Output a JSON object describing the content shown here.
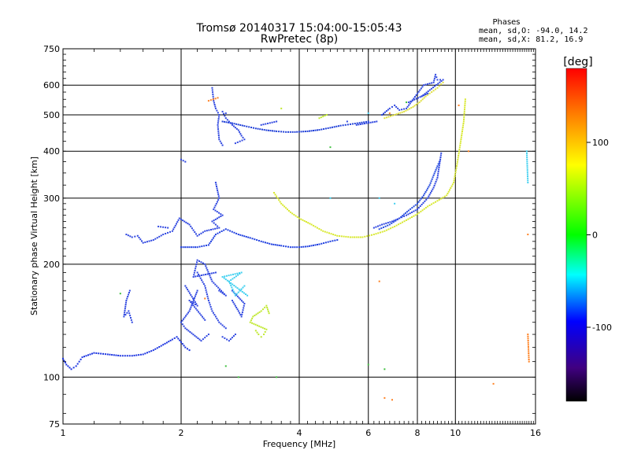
{
  "chart_data": {
    "type": "scatter",
    "title": "Tromsø 20140317 15:04:00-15:05:43",
    "subtitle": "RwPretec (8p)",
    "xlabel": "Frequency [MHz]",
    "ylabel": "Stationary phase Virtual Height [km]",
    "x_scale": "log",
    "y_scale": "log",
    "xlim": [
      1,
      16
    ],
    "ylim": [
      75,
      750
    ],
    "x_ticks": [
      1,
      2,
      4,
      6,
      8,
      10,
      16
    ],
    "x_tick_labels": [
      "1",
      "2",
      "4",
      "6",
      "8",
      "10",
      "16"
    ],
    "y_ticks": [
      75,
      100,
      200,
      300,
      400,
      500,
      600,
      750
    ],
    "y_tick_labels": [
      "75",
      "100",
      "200",
      "300",
      "400",
      "500",
      "600",
      "750"
    ],
    "grid": true,
    "stats": {
      "heading": "Phases",
      "line_o": "mean, sd,O: -94.0, 14.2",
      "line_x": "mean, sd,X:  81.2, 16.9"
    },
    "colorbar": {
      "label": "[deg]",
      "range": [
        -180,
        180
      ],
      "ticks": [
        100,
        0,
        -100
      ],
      "tick_labels": [
        "100",
        "0",
        "-100"
      ],
      "colors": [
        "#ff0000",
        "#ff8000",
        "#ffff00",
        "#00ff00",
        "#00ffff",
        "#0000ff",
        "#400080",
        "#000000"
      ]
    },
    "series": [
      {
        "color": "#1a33e0",
        "phase": -100,
        "points": [
          [
            1.0,
            112
          ],
          [
            1.02,
            108
          ],
          [
            1.05,
            105
          ],
          [
            1.08,
            107
          ],
          [
            1.1,
            110
          ],
          [
            1.12,
            113
          ],
          [
            1.2,
            116
          ],
          [
            1.3,
            115
          ],
          [
            1.4,
            114
          ],
          [
            1.5,
            114
          ],
          [
            1.6,
            115
          ],
          [
            1.7,
            118
          ],
          [
            1.8,
            122
          ],
          [
            1.9,
            126
          ],
          [
            1.95,
            128
          ],
          [
            2.0,
            124
          ],
          [
            2.05,
            120
          ],
          [
            2.1,
            118
          ]
        ]
      },
      {
        "color": "#2040e0",
        "phase": -95,
        "points": [
          [
            2.0,
            222
          ],
          [
            2.2,
            222
          ],
          [
            2.35,
            225
          ],
          [
            2.45,
            240
          ],
          [
            2.6,
            248
          ],
          [
            2.8,
            240
          ],
          [
            3.0,
            235
          ],
          [
            3.2,
            230
          ],
          [
            3.4,
            226
          ],
          [
            3.6,
            224
          ],
          [
            3.8,
            222
          ],
          [
            4.0,
            222
          ],
          [
            4.2,
            223
          ],
          [
            4.5,
            226
          ],
          [
            4.8,
            230
          ],
          [
            5.0,
            232
          ]
        ]
      },
      {
        "color": "#2040d8",
        "phase": -95,
        "points": [
          [
            2.55,
            480
          ],
          [
            2.7,
            475
          ],
          [
            2.9,
            467
          ],
          [
            3.1,
            460
          ],
          [
            3.3,
            455
          ],
          [
            3.5,
            452
          ],
          [
            3.7,
            450
          ],
          [
            3.9,
            450
          ],
          [
            4.2,
            452
          ],
          [
            4.5,
            456
          ],
          [
            4.8,
            462
          ],
          [
            5.1,
            468
          ],
          [
            5.4,
            472
          ],
          [
            5.7,
            476
          ],
          [
            6.0,
            480
          ]
        ]
      },
      {
        "color": "#2a50e0",
        "phase": -90,
        "points": [
          [
            6.4,
            248
          ],
          [
            6.8,
            255
          ],
          [
            7.2,
            265
          ],
          [
            7.6,
            278
          ],
          [
            8.0,
            290
          ],
          [
            8.3,
            305
          ],
          [
            8.6,
            325
          ],
          [
            8.8,
            345
          ],
          [
            9.0,
            365
          ],
          [
            9.15,
            380
          ]
        ]
      },
      {
        "color": "#d8e830",
        "phase": 80,
        "points": [
          [
            3.45,
            310
          ],
          [
            3.6,
            290
          ],
          [
            3.8,
            275
          ],
          [
            4.0,
            265
          ],
          [
            4.3,
            255
          ],
          [
            4.6,
            245
          ],
          [
            5.0,
            238
          ],
          [
            5.4,
            236
          ],
          [
            5.8,
            236
          ],
          [
            6.2,
            240
          ],
          [
            6.6,
            245
          ],
          [
            7.0,
            252
          ],
          [
            7.5,
            262
          ],
          [
            8.0,
            272
          ],
          [
            8.5,
            285
          ],
          [
            9.0,
            295
          ],
          [
            9.5,
            305
          ],
          [
            9.9,
            330
          ],
          [
            10.1,
            370
          ],
          [
            10.3,
            420
          ],
          [
            10.5,
            480
          ],
          [
            10.6,
            550
          ]
        ]
      },
      {
        "color": "#e0e040",
        "phase": 75,
        "points": [
          [
            6.6,
            490
          ],
          [
            7.0,
            500
          ],
          [
            7.4,
            510
          ],
          [
            7.8,
            525
          ],
          [
            8.1,
            540
          ],
          [
            8.4,
            560
          ],
          [
            8.7,
            575
          ],
          [
            9.0,
            590
          ],
          [
            9.3,
            610
          ]
        ]
      },
      {
        "color": "#3048e0",
        "phase": -90,
        "points": [
          [
            2.4,
            590
          ],
          [
            2.42,
            545
          ],
          [
            2.45,
            520
          ],
          [
            2.5,
            500
          ],
          [
            2.48,
            470
          ],
          [
            2.5,
            430
          ],
          [
            2.55,
            415
          ],
          [
            2.45,
            330
          ],
          [
            2.5,
            300
          ],
          [
            2.42,
            280
          ],
          [
            2.55,
            270
          ],
          [
            2.4,
            260
          ],
          [
            2.5,
            250
          ],
          [
            2.3,
            245
          ],
          [
            2.2,
            238
          ],
          [
            2.1,
            255
          ],
          [
            1.98,
            265
          ],
          [
            1.9,
            245
          ],
          [
            1.8,
            240
          ],
          [
            1.7,
            232
          ],
          [
            1.6,
            228
          ],
          [
            1.55,
            238
          ],
          [
            1.5,
            236
          ],
          [
            1.45,
            240
          ],
          [
            1.75,
            252
          ],
          [
            1.85,
            250
          ],
          [
            2.2,
            190
          ],
          [
            2.3,
            175
          ],
          [
            2.35,
            160
          ],
          [
            2.4,
            150
          ],
          [
            2.45,
            145
          ],
          [
            2.5,
            140
          ],
          [
            2.6,
            135
          ],
          [
            2.2,
            170
          ],
          [
            2.1,
            150
          ],
          [
            2.0,
            140
          ],
          [
            2.05,
            135
          ],
          [
            2.25,
            125
          ],
          [
            2.35,
            130
          ],
          [
            2.5,
            170
          ],
          [
            2.6,
            165
          ],
          [
            2.4,
            180
          ],
          [
            2.3,
            200
          ],
          [
            2.2,
            205
          ],
          [
            2.15,
            185
          ],
          [
            2.45,
            190
          ],
          [
            2.55,
            128
          ],
          [
            2.65,
            125
          ],
          [
            2.75,
            130
          ],
          [
            2.3,
            142
          ],
          [
            2.1,
            160
          ],
          [
            2.2,
            155
          ],
          [
            2.05,
            175
          ],
          [
            1.5,
            140
          ],
          [
            1.47,
            150
          ],
          [
            1.43,
            145
          ],
          [
            1.45,
            160
          ],
          [
            1.48,
            170
          ],
          [
            2.7,
            160
          ],
          [
            2.8,
            150
          ],
          [
            2.85,
            145
          ],
          [
            2.9,
            157
          ],
          [
            2.7,
            170
          ],
          [
            2.0,
            380
          ],
          [
            2.05,
            375
          ],
          [
            2.55,
            510
          ],
          [
            2.6,
            490
          ],
          [
            2.65,
            480
          ],
          [
            2.7,
            470
          ],
          [
            2.8,
            455
          ],
          [
            2.85,
            440
          ],
          [
            2.9,
            430
          ],
          [
            2.75,
            420
          ],
          [
            2.6,
            505
          ],
          [
            5.3,
            480
          ],
          [
            6.5,
            500
          ],
          [
            6.8,
            520
          ],
          [
            7.0,
            530
          ],
          [
            7.2,
            515
          ],
          [
            7.5,
            520
          ],
          [
            8.3,
            600
          ],
          [
            8.8,
            610
          ],
          [
            8.9,
            640
          ],
          [
            9.0,
            620
          ],
          [
            9.3,
            620
          ],
          [
            8.2,
            560
          ],
          [
            8.5,
            570
          ],
          [
            7.6,
            540
          ],
          [
            6.3,
            480
          ],
          [
            5.6,
            470
          ],
          [
            3.2,
            470
          ],
          [
            3.5,
            480
          ],
          [
            9.2,
            395
          ],
          [
            9.0,
            340
          ],
          [
            8.8,
            320
          ],
          [
            8.5,
            300
          ],
          [
            8.0,
            280
          ],
          [
            7.5,
            270
          ],
          [
            7.2,
            265
          ],
          [
            6.9,
            260
          ],
          [
            6.5,
            255
          ],
          [
            6.2,
            250
          ]
        ]
      },
      {
        "color": "#40d0f0",
        "phase": -20,
        "points": [
          [
            2.9,
            175
          ],
          [
            2.75,
            165
          ],
          [
            2.65,
            180
          ],
          [
            2.85,
            190
          ],
          [
            2.55,
            185
          ],
          [
            2.95,
            165
          ],
          [
            4.8,
            300
          ],
          [
            7.0,
            290
          ],
          [
            15.2,
            400
          ],
          [
            15.3,
            330
          ],
          [
            6.0,
            505
          ],
          [
            6.4,
            300
          ]
        ]
      },
      {
        "color": "#c0e830",
        "phase": 70,
        "points": [
          [
            3.1,
            133
          ],
          [
            3.15,
            130
          ],
          [
            3.2,
            128
          ],
          [
            3.25,
            130
          ],
          [
            3.3,
            134
          ],
          [
            3.0,
            140
          ],
          [
            3.05,
            145
          ],
          [
            3.2,
            150
          ],
          [
            3.3,
            155
          ],
          [
            3.35,
            148
          ],
          [
            4.5,
            490
          ],
          [
            4.7,
            500
          ],
          [
            3.6,
            520
          ]
        ]
      },
      {
        "color": "#ff8020",
        "phase": 140,
        "points": [
          [
            2.48,
            555
          ],
          [
            2.35,
            545
          ],
          [
            6.8,
            505
          ],
          [
            6.4,
            180
          ],
          [
            6.9,
            87
          ],
          [
            10.2,
            530
          ],
          [
            10.8,
            400
          ],
          [
            15.3,
            240
          ],
          [
            12.5,
            96
          ],
          [
            15.3,
            130
          ],
          [
            15.4,
            110
          ],
          [
            6.6,
            88
          ],
          [
            2.3,
            162
          ]
        ]
      },
      {
        "color": "#40c040",
        "phase": 30,
        "points": [
          [
            6.0,
            108
          ],
          [
            6.6,
            105
          ],
          [
            2.6,
            107
          ],
          [
            3.5,
            100
          ],
          [
            2.8,
            100
          ],
          [
            4.8,
            410
          ],
          [
            7.5,
            540
          ],
          [
            1.4,
            167
          ]
        ]
      }
    ]
  }
}
